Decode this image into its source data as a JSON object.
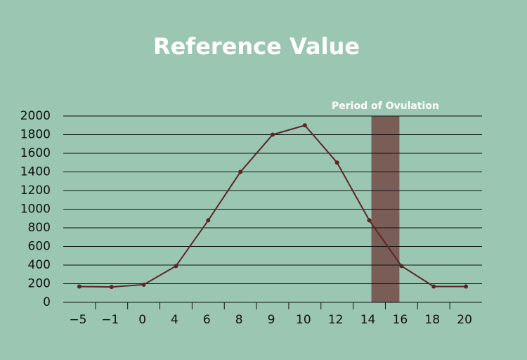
{
  "chart_data": {
    "type": "line",
    "title": "Reference Value",
    "categories": [
      "−5",
      "−1",
      "0",
      "4",
      "6",
      "8",
      "9",
      "10",
      "12",
      "14",
      "16",
      "18",
      "20"
    ],
    "values": [
      170,
      165,
      190,
      390,
      880,
      1400,
      1800,
      1900,
      1500,
      880,
      390,
      170,
      170
    ],
    "color": "#5b2626",
    "ylim": [
      0,
      2000
    ],
    "yticks": [
      0,
      200,
      400,
      600,
      800,
      1000,
      1200,
      1400,
      1600,
      1800,
      2000
    ],
    "grid": true,
    "band": {
      "label": "Period of Ovulation",
      "start": "14",
      "end": "16",
      "color": "#7a5d57"
    }
  }
}
